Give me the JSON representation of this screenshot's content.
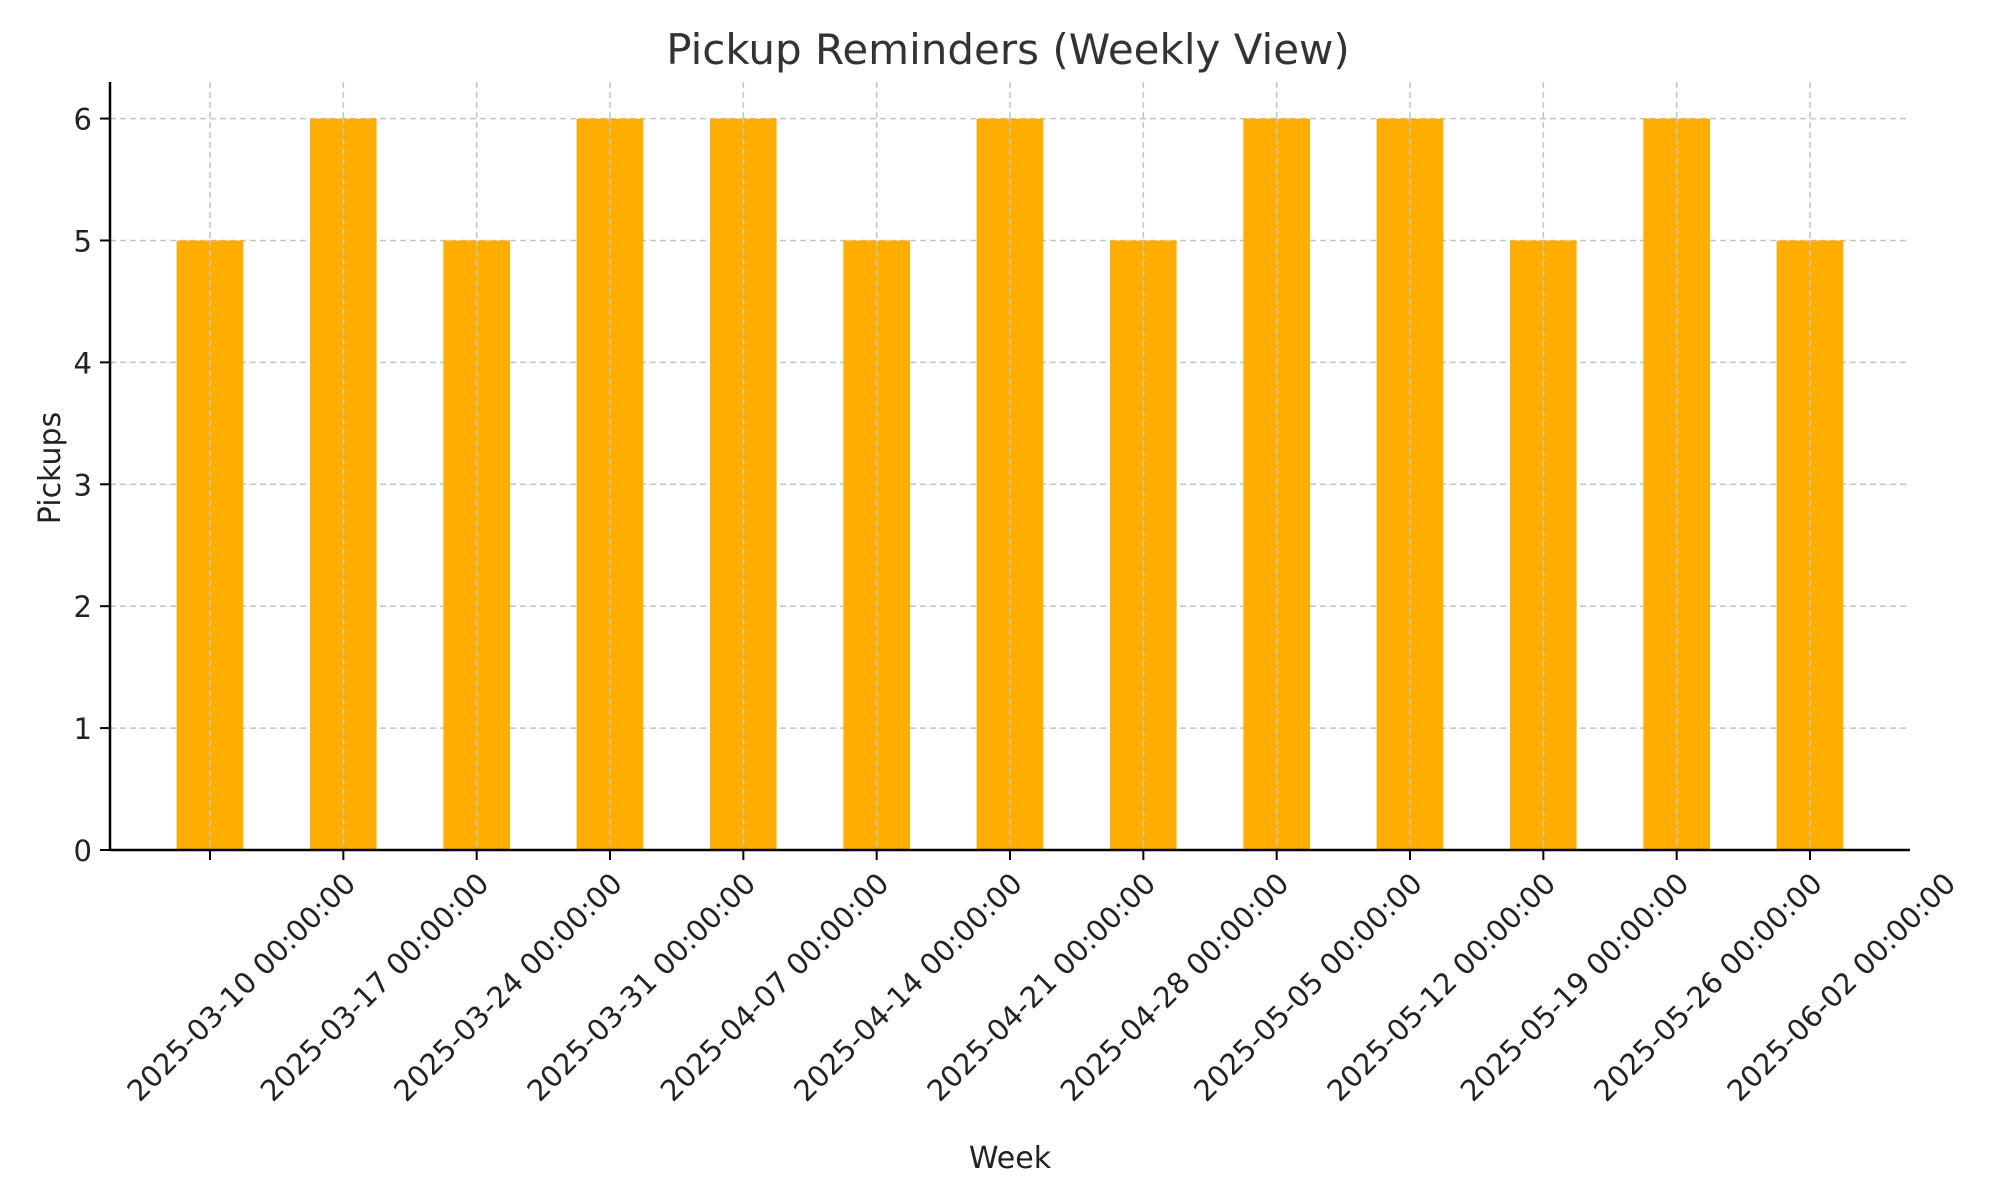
{
  "chart_data": {
    "type": "bar",
    "title": "Pickup Reminders (Weekly View)",
    "xlabel": "Week",
    "ylabel": "Pickups",
    "categories": [
      "2025-03-10 00:00:00",
      "2025-03-17 00:00:00",
      "2025-03-24 00:00:00",
      "2025-03-31 00:00:00",
      "2025-04-07 00:00:00",
      "2025-04-14 00:00:00",
      "2025-04-21 00:00:00",
      "2025-04-28 00:00:00",
      "2025-05-05 00:00:00",
      "2025-05-12 00:00:00",
      "2025-05-19 00:00:00",
      "2025-05-26 00:00:00",
      "2025-06-02 00:00:00"
    ],
    "values": [
      5,
      6,
      5,
      6,
      6,
      5,
      6,
      5,
      6,
      6,
      5,
      6,
      5
    ],
    "ylim": [
      0,
      6.3
    ],
    "yticks": [
      0,
      1,
      2,
      3,
      4,
      5,
      6
    ],
    "grid": true,
    "bar_color": "#FFAE00"
  }
}
